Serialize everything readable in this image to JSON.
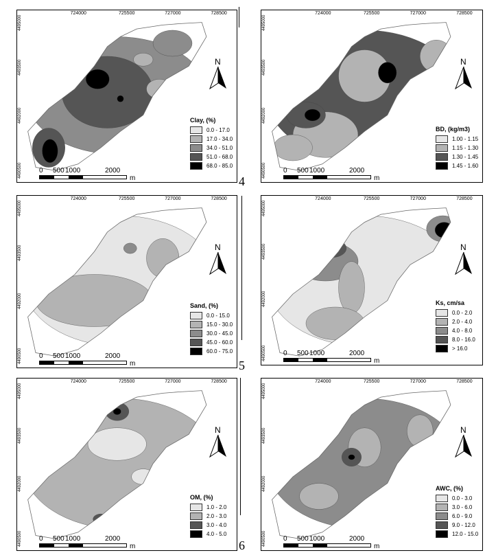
{
  "x_ticks": [
    "724000",
    "725500",
    "727000",
    "728500"
  ],
  "y_ticks": [
    "4495000",
    "4493500",
    "4492000",
    "4490500"
  ],
  "scale": {
    "labels": [
      "0",
      "500",
      "1000",
      "2000"
    ],
    "unit": "m"
  },
  "north_label": "N",
  "panel_numbers": [
    "4",
    "5",
    "6"
  ],
  "colors": {
    "c1": "#e6e6e6",
    "c2": "#b3b3b3",
    "c3": "#8c8c8c",
    "c4": "#555555",
    "c5": "#000000"
  },
  "panels": [
    {
      "id": "clay",
      "title": "Clay, (%)",
      "classes": [
        "0.0  -  17.0",
        "17.0 - 34.0",
        "34.0 - 51.0",
        "51.0 - 68.0",
        "68.0 - 85.0"
      ]
    },
    {
      "id": "bd",
      "title": "BD, (kg/m3)",
      "classes": [
        "1.00 - 1.15",
        "1.15 - 1.30",
        "1.30 - 1.45",
        "1.45 - 1.60"
      ]
    },
    {
      "id": "sand",
      "title": "Sand, (%)",
      "classes": [
        "0.0  -  15.0",
        "15.0 - 30.0",
        "30.0 - 45.0",
        "45.0 - 60.0",
        "60.0 - 75.0"
      ]
    },
    {
      "id": "ks",
      "title": "Ks, cm/sa",
      "classes": [
        "0.0  -  2.0",
        "2.0  -  4.0",
        "4.0  -  8.0",
        "8.0 - 16.0",
        "> 16.0"
      ]
    },
    {
      "id": "om",
      "title": "OM, (%)",
      "classes": [
        "1.0 - 2.0",
        "2.0 - 3.0",
        "3.0 - 4.0",
        "4.0 - 5.0"
      ]
    },
    {
      "id": "awc",
      "title": "AWC, (%)",
      "classes": [
        "0.0  -  3.0",
        "3.0  -  6.0",
        "6.0  -  9.0",
        "9.0  - 12.0",
        "12.0 - 15.0"
      ]
    }
  ]
}
